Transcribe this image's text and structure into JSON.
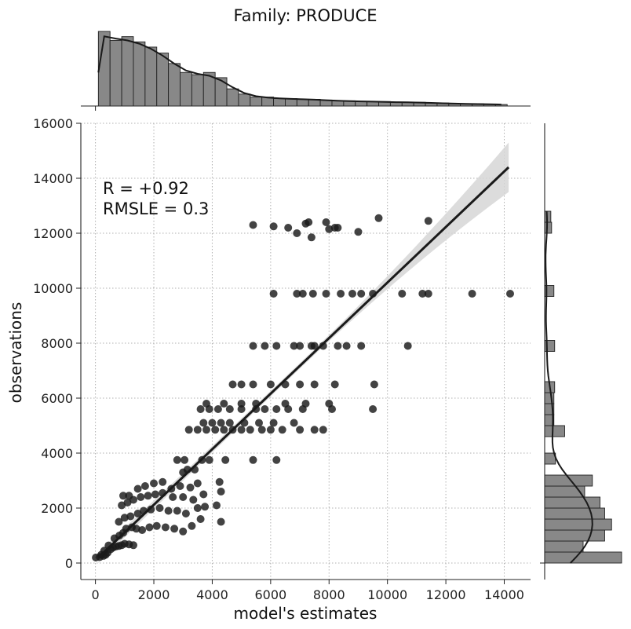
{
  "chart_data": {
    "type": "scatter",
    "title": "Family: PRODUCE",
    "xlabel": "model's estimates",
    "ylabel": "observations",
    "xlim": [
      -500,
      14900
    ],
    "ylim": [
      -600,
      16000
    ],
    "xticks": [
      0,
      2000,
      4000,
      6000,
      8000,
      10000,
      12000,
      14000
    ],
    "yticks": [
      0,
      2000,
      4000,
      6000,
      8000,
      10000,
      12000,
      14000,
      16000
    ],
    "grid": true,
    "annotations": [
      "R = +0.92",
      "RMSLE =  0.3"
    ],
    "regression": {
      "x_start": 100,
      "y_start": 200,
      "x_end": 14150,
      "y_end": 14400,
      "ci_start": 200,
      "ci_end": 900,
      "ci_mid": 100
    },
    "points": [
      [
        12,
        200
      ],
      [
        150,
        220
      ],
      [
        280,
        260
      ],
      [
        350,
        300
      ],
      [
        420,
        380
      ],
      [
        520,
        500
      ],
      [
        600,
        560
      ],
      [
        700,
        600
      ],
      [
        800,
        620
      ],
      [
        900,
        650
      ],
      [
        1000,
        700
      ],
      [
        1150,
        680
      ],
      [
        1300,
        650
      ],
      [
        450,
        640
      ],
      [
        300,
        450
      ],
      [
        200,
        300
      ],
      [
        650,
        900
      ],
      [
        820,
        1000
      ],
      [
        950,
        1100
      ],
      [
        1050,
        1250
      ],
      [
        1250,
        1300
      ],
      [
        1400,
        1250
      ],
      [
        1600,
        1200
      ],
      [
        1850,
        1300
      ],
      [
        2100,
        1350
      ],
      [
        2400,
        1300
      ],
      [
        2700,
        1250
      ],
      [
        3000,
        1150
      ],
      [
        3300,
        1350
      ],
      [
        3600,
        1600
      ],
      [
        4300,
        1500
      ],
      [
        800,
        1500
      ],
      [
        1000,
        1650
      ],
      [
        1200,
        1700
      ],
      [
        1450,
        1800
      ],
      [
        1650,
        1900
      ],
      [
        1900,
        1950
      ],
      [
        2200,
        2000
      ],
      [
        2500,
        1900
      ],
      [
        2800,
        1900
      ],
      [
        3100,
        1800
      ],
      [
        3500,
        2000
      ],
      [
        3750,
        2050
      ],
      [
        4150,
        2100
      ],
      [
        900,
        2100
      ],
      [
        1100,
        2200
      ],
      [
        1300,
        2300
      ],
      [
        1550,
        2400
      ],
      [
        1800,
        2450
      ],
      [
        2050,
        2500
      ],
      [
        2300,
        2550
      ],
      [
        2650,
        2400
      ],
      [
        3000,
        2400
      ],
      [
        3350,
        2300
      ],
      [
        3700,
        2500
      ],
      [
        4300,
        2600
      ],
      [
        950,
        2450
      ],
      [
        1150,
        2450
      ],
      [
        1450,
        2700
      ],
      [
        1700,
        2800
      ],
      [
        2000,
        2900
      ],
      [
        2300,
        2950
      ],
      [
        2600,
        2700
      ],
      [
        2900,
        2800
      ],
      [
        3250,
        2750
      ],
      [
        3500,
        2900
      ],
      [
        4250,
        2950
      ],
      [
        3000,
        3300
      ],
      [
        3150,
        3400
      ],
      [
        3400,
        3400
      ],
      [
        2800,
        3750
      ],
      [
        3050,
        3750
      ],
      [
        3650,
        3750
      ],
      [
        3900,
        3750
      ],
      [
        4450,
        3750
      ],
      [
        5400,
        3750
      ],
      [
        6200,
        3750
      ],
      [
        3200,
        4850
      ],
      [
        3500,
        4850
      ],
      [
        3800,
        4850
      ],
      [
        4100,
        4850
      ],
      [
        4400,
        4850
      ],
      [
        4700,
        4850
      ],
      [
        5000,
        4850
      ],
      [
        5300,
        4850
      ],
      [
        5700,
        4850
      ],
      [
        6000,
        4850
      ],
      [
        6400,
        4850
      ],
      [
        7000,
        4850
      ],
      [
        7500,
        4850
      ],
      [
        7800,
        4850
      ],
      [
        3700,
        5100
      ],
      [
        4000,
        5100
      ],
      [
        4300,
        5100
      ],
      [
        4600,
        5100
      ],
      [
        5100,
        5100
      ],
      [
        5600,
        5100
      ],
      [
        6100,
        5100
      ],
      [
        6800,
        5100
      ],
      [
        3600,
        5600
      ],
      [
        3900,
        5600
      ],
      [
        4200,
        5600
      ],
      [
        4600,
        5600
      ],
      [
        5000,
        5600
      ],
      [
        5500,
        5600
      ],
      [
        5800,
        5600
      ],
      [
        6200,
        5600
      ],
      [
        6600,
        5600
      ],
      [
        7100,
        5600
      ],
      [
        8100,
        5600
      ],
      [
        9500,
        5600
      ],
      [
        3800,
        5800
      ],
      [
        4400,
        5800
      ],
      [
        5000,
        5800
      ],
      [
        5500,
        5800
      ],
      [
        6500,
        5800
      ],
      [
        7200,
        5800
      ],
      [
        8000,
        5800
      ],
      [
        4700,
        6500
      ],
      [
        5000,
        6500
      ],
      [
        5400,
        6500
      ],
      [
        6000,
        6500
      ],
      [
        6500,
        6500
      ],
      [
        7000,
        6500
      ],
      [
        7500,
        6500
      ],
      [
        8200,
        6500
      ],
      [
        9550,
        6500
      ],
      [
        5400,
        7900
      ],
      [
        5800,
        7900
      ],
      [
        6200,
        7900
      ],
      [
        6800,
        7900
      ],
      [
        7000,
        7900
      ],
      [
        7400,
        7900
      ],
      [
        7500,
        7900
      ],
      [
        7800,
        7900
      ],
      [
        8300,
        7900
      ],
      [
        8600,
        7900
      ],
      [
        9100,
        7900
      ],
      [
        10700,
        7900
      ],
      [
        6100,
        9800
      ],
      [
        6900,
        9800
      ],
      [
        7100,
        9800
      ],
      [
        7450,
        9800
      ],
      [
        7900,
        9800
      ],
      [
        8400,
        9800
      ],
      [
        8800,
        9800
      ],
      [
        9100,
        9800
      ],
      [
        9500,
        9800
      ],
      [
        10500,
        9800
      ],
      [
        11200,
        9800
      ],
      [
        11400,
        9800
      ],
      [
        12900,
        9800
      ],
      [
        14200,
        9800
      ],
      [
        5400,
        12300
      ],
      [
        6100,
        12250
      ],
      [
        6600,
        12200
      ],
      [
        6900,
        12000
      ],
      [
        7200,
        12350
      ],
      [
        7300,
        12400
      ],
      [
        7400,
        11850
      ],
      [
        7900,
        12400
      ],
      [
        8000,
        12150
      ],
      [
        8200,
        12200
      ],
      [
        8300,
        12200
      ],
      [
        9000,
        12050
      ],
      [
        9700,
        12550
      ],
      [
        11400,
        12450
      ]
    ],
    "hist_x": {
      "bin_start": 100,
      "bin_width": 400,
      "heights": [
        1.0,
        0.88,
        0.93,
        0.86,
        0.79,
        0.71,
        0.57,
        0.45,
        0.42,
        0.45,
        0.38,
        0.23,
        0.16,
        0.12,
        0.12,
        0.1,
        0.1,
        0.09,
        0.09,
        0.08,
        0.07,
        0.07,
        0.06,
        0.06,
        0.06,
        0.05,
        0.05,
        0.05,
        0.04,
        0.04,
        0.03,
        0.03,
        0.03,
        0.02,
        0.02
      ]
    },
    "hist_y": {
      "bins": [
        [
          0,
          400,
          1.0
        ],
        [
          400,
          800,
          0.5
        ],
        [
          800,
          1200,
          0.78
        ],
        [
          1200,
          1600,
          0.87
        ],
        [
          1600,
          2000,
          0.78
        ],
        [
          2000,
          2400,
          0.72
        ],
        [
          2400,
          2800,
          0.52
        ],
        [
          2800,
          3200,
          0.62
        ],
        [
          3600,
          4000,
          0.14
        ],
        [
          4600,
          5000,
          0.26
        ],
        [
          5000,
          5400,
          0.12
        ],
        [
          5400,
          5800,
          0.12
        ],
        [
          5800,
          6200,
          0.12
        ],
        [
          6200,
          6600,
          0.13
        ],
        [
          7700,
          8100,
          0.13
        ],
        [
          9700,
          10100,
          0.12
        ],
        [
          12000,
          12400,
          0.09
        ],
        [
          12400,
          12800,
          0.08
        ]
      ]
    }
  }
}
